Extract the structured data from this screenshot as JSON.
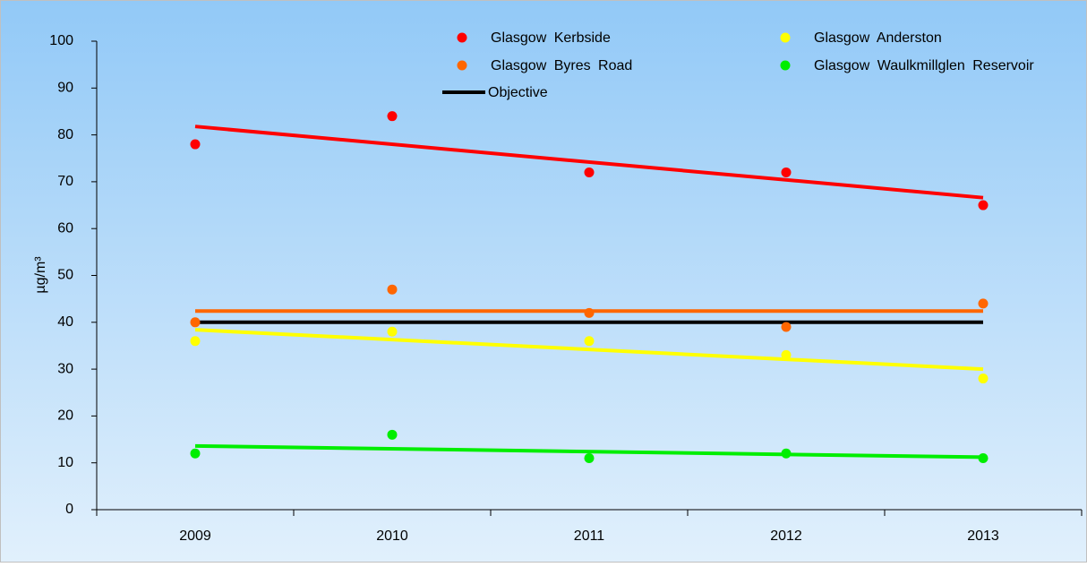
{
  "chart_data": {
    "type": "scatter",
    "y_label": "µg/m³",
    "categories": [
      "2009",
      "2010",
      "2011",
      "2012",
      "2013"
    ],
    "series": [
      {
        "name": "Glasgow Kerbside",
        "color": "#ff0000",
        "values": [
          78,
          84,
          72,
          72,
          65
        ],
        "trendline": true
      },
      {
        "name": "Glasgow Anderston",
        "color": "#ffff00",
        "values": [
          36,
          38,
          36,
          33,
          28
        ],
        "trendline": true
      },
      {
        "name": "Glasgow Byres Road",
        "color": "#ff6600",
        "values": [
          40,
          47,
          42,
          39,
          44
        ],
        "trendline": true
      },
      {
        "name": "Glasgow Waulkmillglen Reservoir",
        "color": "#00ee00",
        "values": [
          12,
          16,
          11,
          12,
          11
        ],
        "trendline": true
      },
      {
        "name": "Objective",
        "color": "#000000",
        "values": [
          40,
          40,
          40,
          40,
          40
        ],
        "mode": "line"
      }
    ],
    "ylim": [
      0,
      100
    ],
    "yticks": [
      0,
      10,
      20,
      30,
      40,
      50,
      60,
      70,
      80,
      90,
      100
    ]
  }
}
